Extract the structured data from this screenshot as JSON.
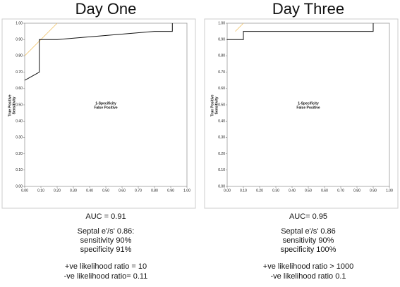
{
  "chart_data": [
    {
      "type": "line",
      "title": "Day One",
      "xlabel": [
        "1-Specificity",
        "False Positive"
      ],
      "ylabel": [
        "True Positive",
        "Sensitivity"
      ],
      "xlim": [
        0,
        1
      ],
      "ylim": [
        0,
        1
      ],
      "xticks": [
        {
          "value": 0,
          "label": "0.00"
        },
        {
          "value": 0.1,
          "label": "0.10"
        },
        {
          "value": 0.2,
          "label": "0.20"
        },
        {
          "value": 0.3,
          "label": "0.30"
        },
        {
          "value": 0.4,
          "label": "0.40"
        },
        {
          "value": 0.5,
          "label": "0.50"
        },
        {
          "value": 0.6,
          "label": "0.60"
        },
        {
          "value": 0.7,
          "label": "0.70"
        },
        {
          "value": 0.8,
          "label": "0.80"
        },
        {
          "value": 0.9,
          "label": "0.90"
        },
        {
          "value": 1,
          "label": "1.00"
        }
      ],
      "yticks": [
        {
          "value": 0,
          "label": "0.00"
        },
        {
          "value": 0.1,
          "label": "0.10"
        },
        {
          "value": 0.2,
          "label": "0.20"
        },
        {
          "value": 0.3,
          "label": "0.30"
        },
        {
          "value": 0.4,
          "label": "0.40"
        },
        {
          "value": 0.5,
          "label": "0.50"
        },
        {
          "value": 0.6,
          "label": "0.60"
        },
        {
          "value": 0.7,
          "label": "0.70"
        },
        {
          "value": 0.8,
          "label": "0.80"
        },
        {
          "value": 0.9,
          "label": "0.90"
        },
        {
          "value": 1,
          "label": "1.00"
        }
      ],
      "series": [
        {
          "color": "#f0c060",
          "x": [
            0,
            0.2
          ],
          "values": [
            0.8,
            1
          ]
        },
        {
          "color": "#111111",
          "x": [
            0,
            0.09,
            0.09,
            0.2,
            0.8,
            0.91,
            0.91
          ],
          "values": [
            0.65,
            0.7,
            0.9,
            0.9,
            0.95,
            0.95,
            1
          ]
        }
      ],
      "notes": [
        "AUC = 0.91",
        "Septal e'/s' 0.86:",
        " sensitivity 90%",
        "specificity 91%",
        "+ve likelihood ratio = 10",
        "-ve likelihood ratio= 0.11"
      ]
    },
    {
      "type": "line",
      "title": "Day Three",
      "xlabel": [
        "1-Specificity",
        "False Positive"
      ],
      "ylabel": [
        "True Positive",
        "Sensitivity"
      ],
      "xlim": [
        0,
        1
      ],
      "ylim": [
        0,
        1
      ],
      "xticks": [
        {
          "value": 0,
          "label": "0.00"
        },
        {
          "value": 0.1,
          "label": "0.10"
        },
        {
          "value": 0.2,
          "label": "0.20"
        },
        {
          "value": 0.3,
          "label": "0.30"
        },
        {
          "value": 0.4,
          "label": "0.40"
        },
        {
          "value": 0.5,
          "label": "0.50"
        },
        {
          "value": 0.6,
          "label": "0.60"
        },
        {
          "value": 0.7,
          "label": "0.70"
        },
        {
          "value": 0.8,
          "label": "0.80"
        },
        {
          "value": 0.9,
          "label": "0.90"
        },
        {
          "value": 1,
          "label": "1.00"
        }
      ],
      "yticks": [
        {
          "value": 0,
          "label": "0.00"
        },
        {
          "value": 0.1,
          "label": "0.10"
        },
        {
          "value": 0.2,
          "label": "0.20"
        },
        {
          "value": 0.3,
          "label": "0.30"
        },
        {
          "value": 0.4,
          "label": "0.40"
        },
        {
          "value": 0.5,
          "label": "0.50"
        },
        {
          "value": 0.6,
          "label": "0.60"
        },
        {
          "value": 0.7,
          "label": "0.70"
        },
        {
          "value": 0.8,
          "label": "0.80"
        },
        {
          "value": 0.9,
          "label": "0.90"
        },
        {
          "value": 1,
          "label": "1.00"
        }
      ],
      "series": [
        {
          "color": "#f0c060",
          "x": [
            0.05,
            0.1
          ],
          "values": [
            0.95,
            1
          ]
        },
        {
          "color": "#111111",
          "x": [
            0,
            0.1,
            0.1,
            0.9,
            0.9
          ],
          "values": [
            0.9,
            0.9,
            0.95,
            0.95,
            1
          ]
        }
      ],
      "notes": [
        "AUC=  0.95",
        "Septal e'/s' 0.86",
        "sensitivity 90%",
        "specificity 100%",
        "+ve likelihood ratio > 1000",
        "-ve likelihood ratio 0.1"
      ]
    }
  ]
}
